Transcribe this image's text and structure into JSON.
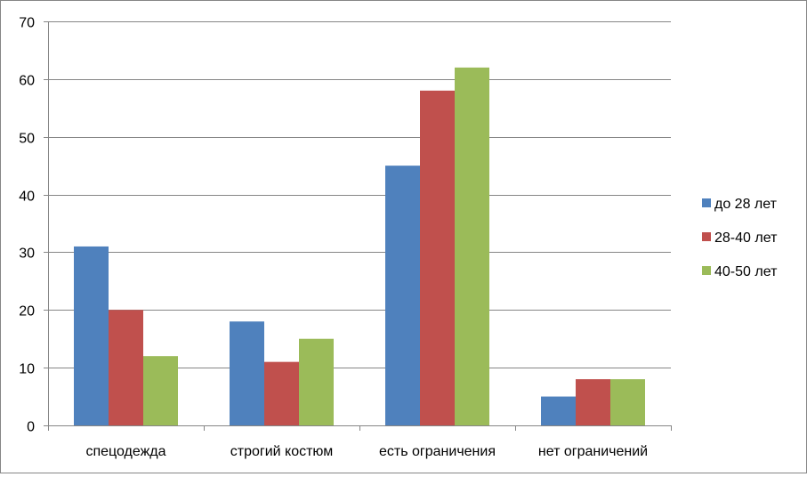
{
  "chart_data": {
    "type": "bar",
    "categories": [
      "спецодежда",
      "строгий костюм",
      "есть ограничения",
      "нет ограничений"
    ],
    "series": [
      {
        "name": "до 28 лет",
        "color": "#4F81BD",
        "values": [
          31,
          18,
          45,
          5
        ]
      },
      {
        "name": "28-40 лет",
        "color": "#C0504D",
        "values": [
          20,
          11,
          58,
          8
        ]
      },
      {
        "name": "40-50 лет",
        "color": "#9BBB59",
        "values": [
          12,
          15,
          62,
          8
        ]
      }
    ],
    "ylim": [
      0,
      70
    ],
    "yticks": [
      0,
      10,
      20,
      30,
      40,
      50,
      60,
      70
    ],
    "grid": true,
    "legend_position": "right"
  }
}
